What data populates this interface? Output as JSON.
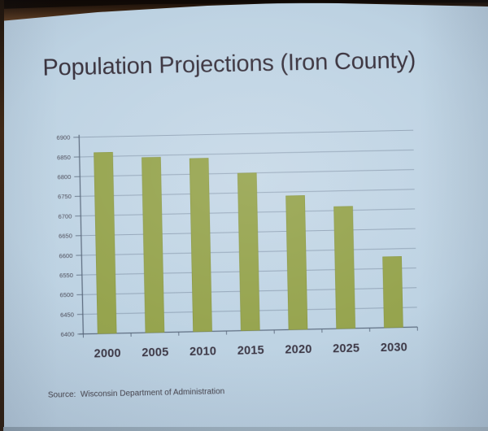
{
  "slide": {
    "title": "Population Projections (Iron County)",
    "source": "Source:  Wisconsin Department of Administration",
    "background_color": "#bed3e3"
  },
  "photo": {
    "screen_edge_color": "#3a2413",
    "bottom_edge_color": "#9cafbd"
  },
  "chart_data": {
    "type": "bar",
    "title": "",
    "xlabel": "",
    "ylabel": "",
    "categories": [
      "2000",
      "2005",
      "2010",
      "2015",
      "2020",
      "2025",
      "2030"
    ],
    "values": [
      6860,
      6845,
      6840,
      6800,
      6740,
      6710,
      6580
    ],
    "ylim": [
      6400,
      6900
    ],
    "ytick_step": 50,
    "yticks": [
      "6400",
      "6450",
      "6500",
      "6550",
      "6600",
      "6650",
      "6700",
      "6750",
      "6800",
      "6850",
      "6900"
    ],
    "grid": true,
    "legend_position": "none",
    "bar_color": "#96a44e",
    "bar_edge_color": "#87953f",
    "gridline_color": "#6f8095",
    "axis_color": "#566478",
    "ytick_label_color": "#4b4b58",
    "xtick_label_color": "#3c3745"
  }
}
